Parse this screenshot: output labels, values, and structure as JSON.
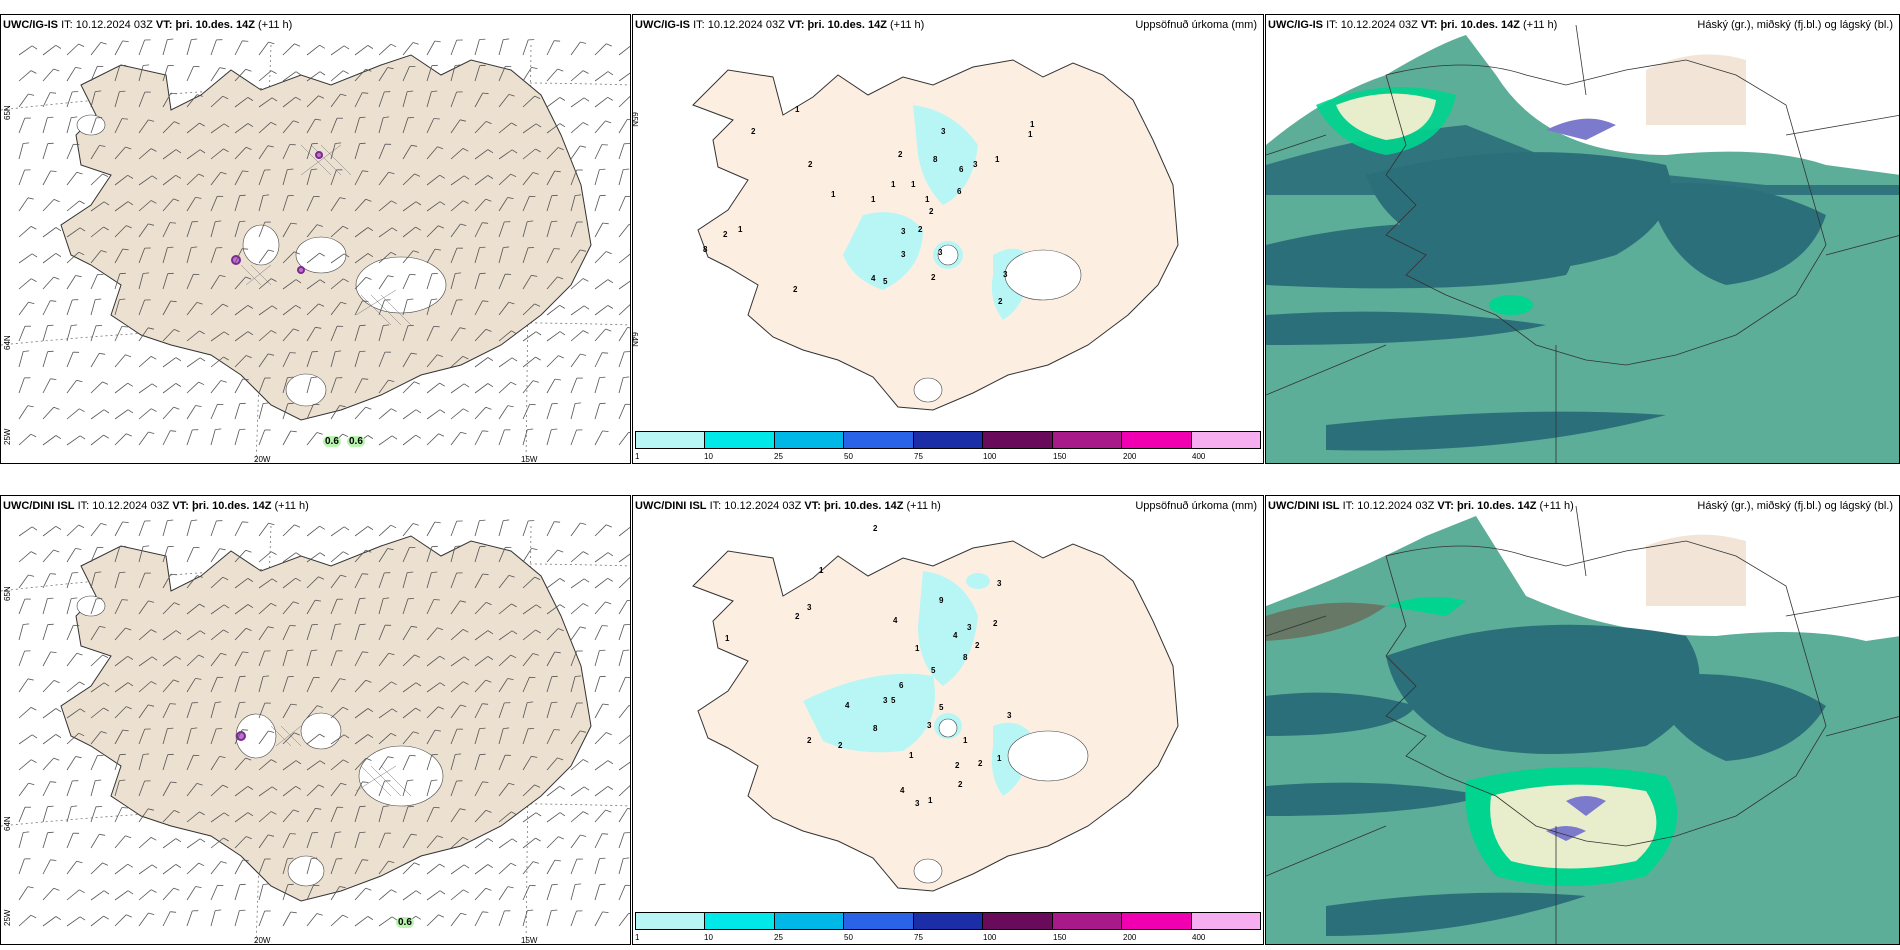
{
  "rows": [
    {
      "model": "UWC/IG-IS",
      "it_label": "IT:",
      "it": "10.12.2024 03Z",
      "vt_label": "VT:",
      "vt": "þri. 10.des. 14Z",
      "lead": "(+11 h)",
      "wind_values": [
        "0.6",
        "0.6"
      ]
    },
    {
      "model": "UWC/DINI ISL",
      "it_label": "IT:",
      "it": "10.12.2024 03Z",
      "vt_label": "VT:",
      "vt": "þri. 10.des. 14Z",
      "lead": "(+11 h)",
      "wind_values": [
        "0.6"
      ]
    }
  ],
  "precip_title": "Uppsöfnuð úrkoma (mm)",
  "cloud_title": "Háský (gr.), miðský (fj.bl.) og lágský (bl.)",
  "lat_labels": [
    "65N",
    "64N",
    "25W",
    "65N",
    "64N"
  ],
  "lon_labels": [
    "20W",
    "15W"
  ],
  "colorbar": {
    "ticks": [
      "1",
      "10",
      "25",
      "50",
      "75",
      "100",
      "150",
      "200",
      "400"
    ],
    "colors": [
      "#b8f6f6",
      "#00e8e8",
      "#00b8e8",
      "#2a62e8",
      "#1b2ea8",
      "#6a0a5a",
      "#a81a8a",
      "#f000b0",
      "#f7aef0"
    ]
  },
  "precip_numbers_top": [
    "3",
    "1",
    "1",
    "2",
    "8",
    "6",
    "3",
    "1",
    "1",
    "1",
    "1",
    "1",
    "6",
    "2",
    "2",
    "3",
    "3",
    "3",
    "4",
    "5",
    "2",
    "2",
    "3",
    "2",
    "8",
    "2",
    "1",
    "2",
    "2",
    "1",
    "1"
  ],
  "precip_numbers_bottom": [
    "2",
    "9",
    "3",
    "2",
    "4",
    "3",
    "4",
    "2",
    "1",
    "8",
    "5",
    "6",
    "3",
    "5",
    "4",
    "8",
    "5",
    "2",
    "3",
    "1",
    "2",
    "1",
    "2",
    "2",
    "1",
    "3",
    "2",
    "1",
    "3",
    "1",
    "3",
    "2",
    "1",
    "4"
  ],
  "colors": {
    "land": "#ece0d0",
    "land_precip": "#fcefe2",
    "cloud_high": "#2b6f7a",
    "cloud_mid": "#5cae98",
    "cloud_low": "#00d48e"
  }
}
